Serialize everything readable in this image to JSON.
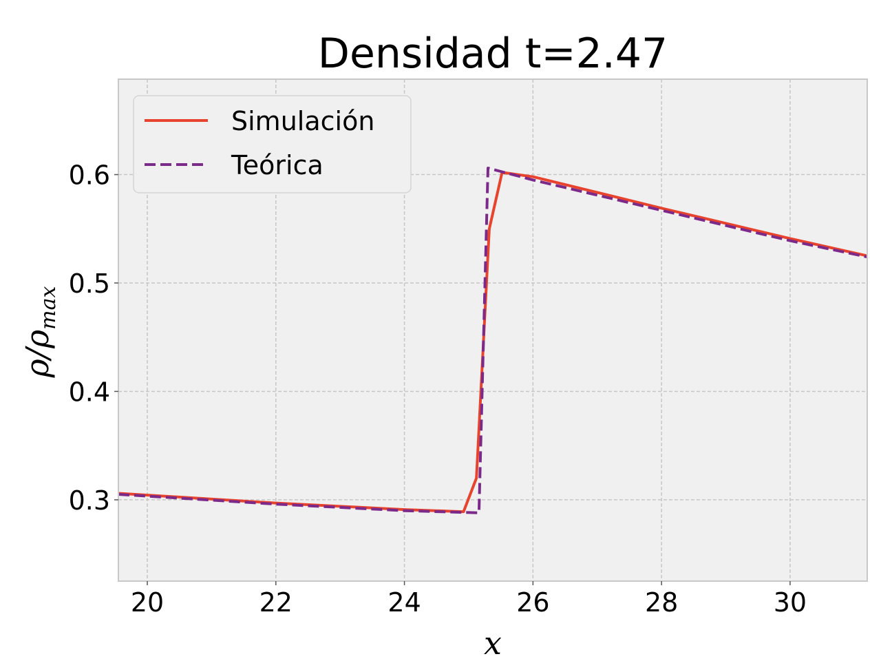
{
  "chart_data": {
    "type": "line",
    "title": "Densidad t=2.47",
    "xlabel": "x",
    "ylabel": {
      "main": "ρ/ρ",
      "sub": "max"
    },
    "xlim": [
      19.55,
      31.2
    ],
    "ylim": [
      0.225,
      0.688
    ],
    "xticks": [
      20,
      22,
      24,
      26,
      28,
      30
    ],
    "xtick_labels": [
      "20",
      "22",
      "24",
      "26",
      "28",
      "30"
    ],
    "yticks": [
      0.3,
      0.4,
      0.5,
      0.6
    ],
    "ytick_labels": [
      "0.3",
      "0.4",
      "0.5",
      "0.6"
    ],
    "grid": true,
    "legend_position": "upper-left",
    "series": [
      {
        "name": "Simulación",
        "color": "#e8432d",
        "style": "solid",
        "x": [
          19.55,
          22.0,
          24.0,
          24.92,
          25.12,
          25.32,
          25.52,
          26.0,
          28.0,
          30.0,
          31.2
        ],
        "y": [
          0.306,
          0.297,
          0.291,
          0.289,
          0.32,
          0.55,
          0.602,
          0.598,
          0.569,
          0.541,
          0.525
        ]
      },
      {
        "name": "Teórica",
        "color": "#7b2a8a",
        "style": "dashed",
        "x": [
          19.55,
          22.0,
          24.0,
          25.15,
          25.16,
          25.3,
          26.0,
          28.0,
          30.0,
          31.2
        ],
        "y": [
          0.305,
          0.296,
          0.29,
          0.288,
          0.288,
          0.606,
          0.595,
          0.567,
          0.539,
          0.524
        ]
      }
    ]
  }
}
